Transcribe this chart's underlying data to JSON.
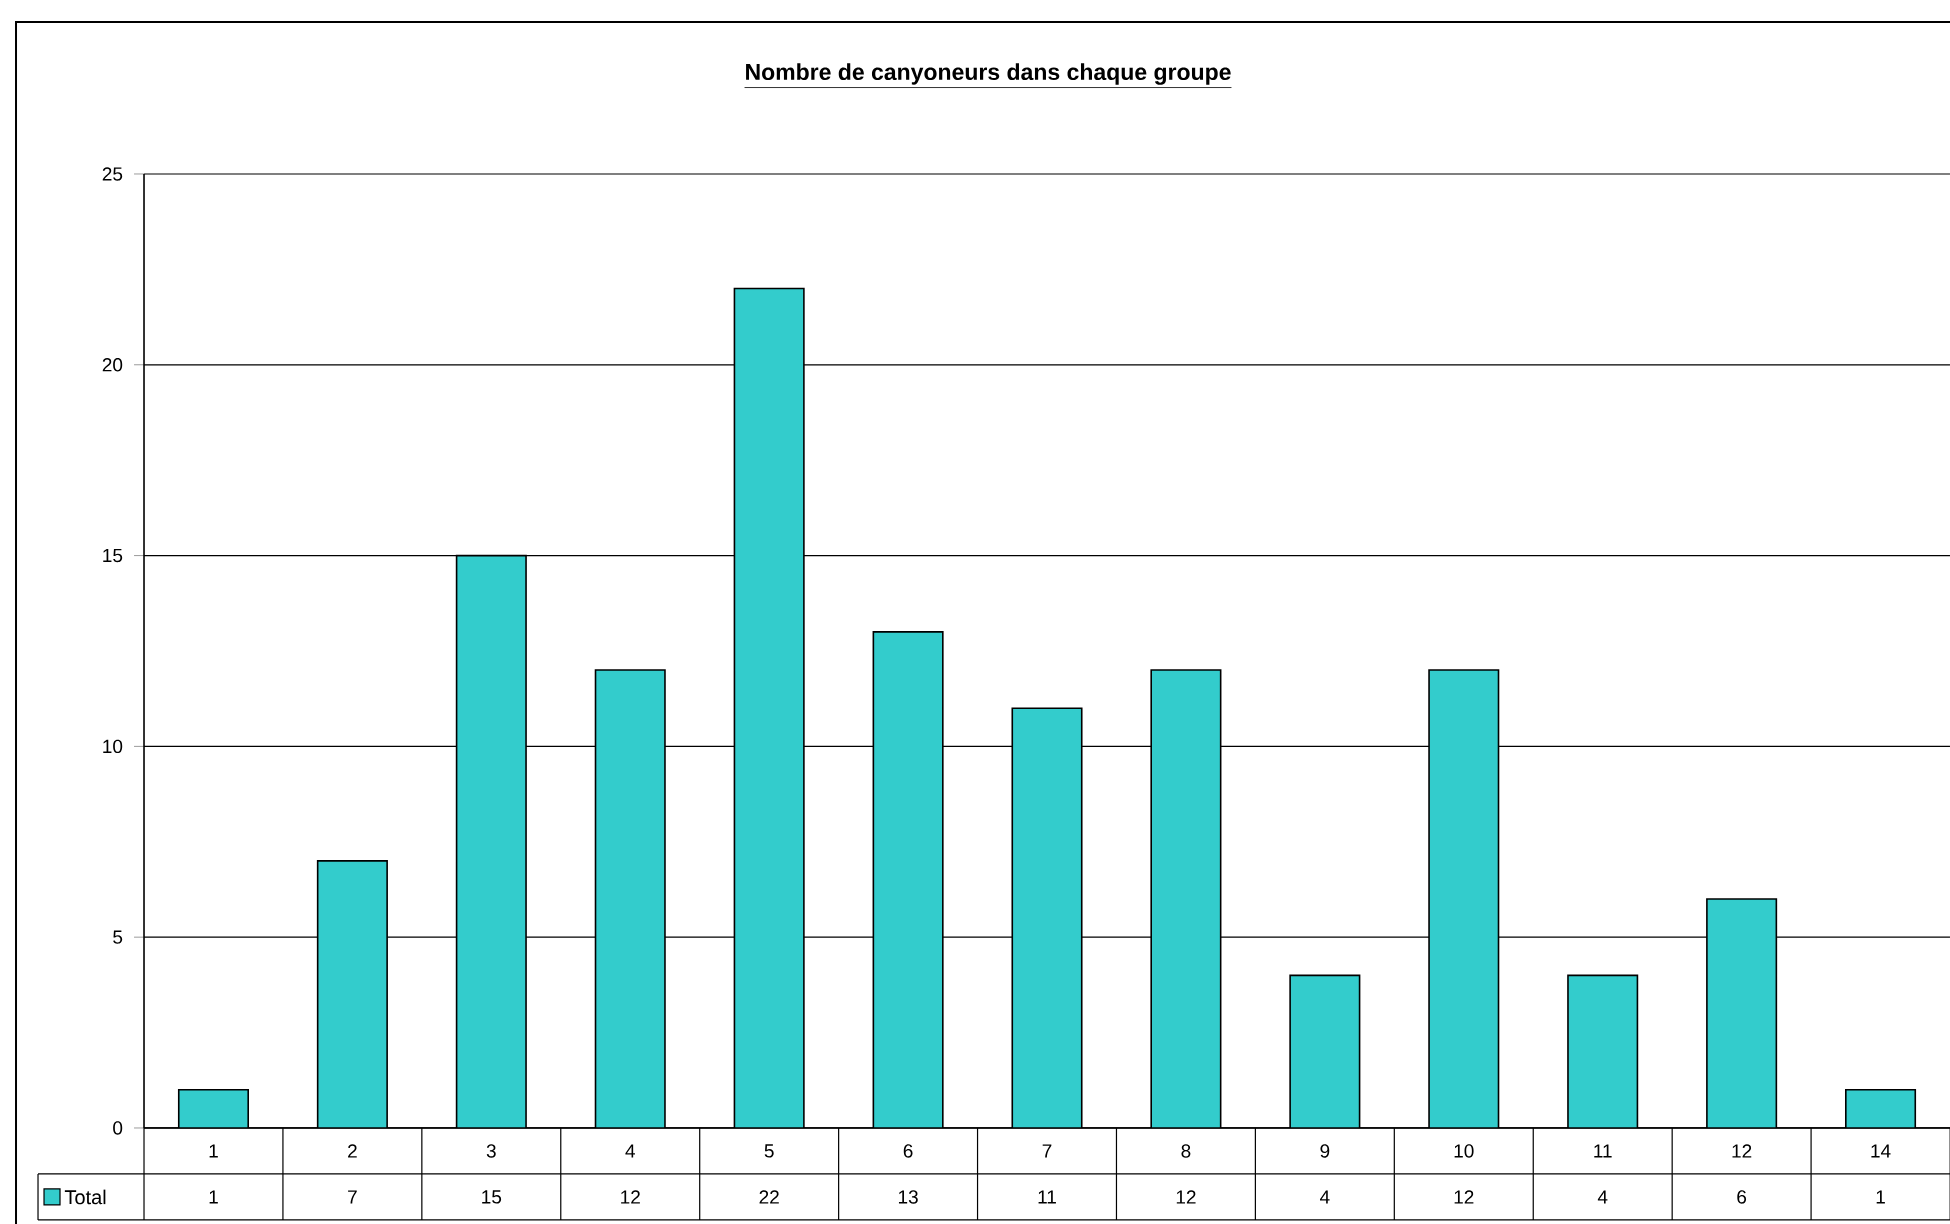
{
  "chart_data": {
    "type": "bar",
    "title": "Nombre de canyoneurs dans chaque groupe",
    "categories": [
      "1",
      "2",
      "3",
      "4",
      "5",
      "6",
      "7",
      "8",
      "9",
      "10",
      "11",
      "12",
      "14"
    ],
    "series": [
      {
        "name": "Total",
        "color": "#33cccc",
        "values": [
          1,
          7,
          15,
          12,
          22,
          13,
          11,
          12,
          4,
          12,
          4,
          6,
          1
        ]
      }
    ],
    "ylim": [
      0,
      25
    ],
    "yticks": [
      0,
      5,
      10,
      15,
      20,
      25
    ],
    "grid": "y",
    "legend": "bottom left",
    "data_labels": true
  }
}
